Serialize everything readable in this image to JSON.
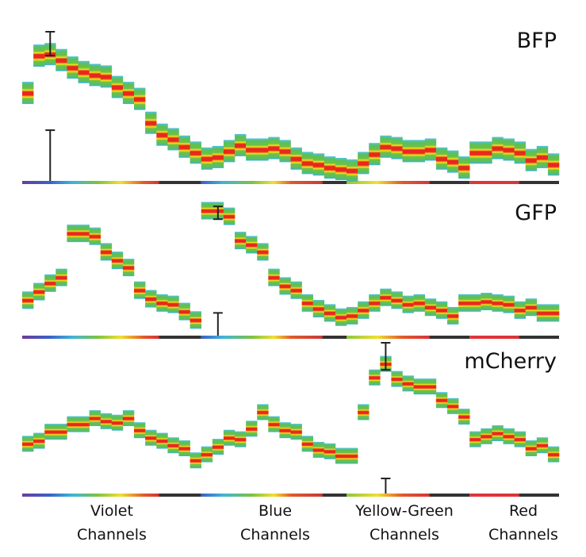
{
  "chart_data": {
    "type": "heatmap",
    "title": "",
    "xlabel": "",
    "ylabel": "",
    "ylim": [
      0,
      100
    ],
    "channel_count": 48,
    "channel_groups": [
      {
        "label_line1": "Violet",
        "label_line2": "Channels",
        "start": 0,
        "end": 16
      },
      {
        "label_line1": "Blue",
        "label_line2": "Channels",
        "start": 16,
        "end": 29
      },
      {
        "label_line1": "Yellow-Green",
        "label_line2": "Channels",
        "start": 29,
        "end": 40
      },
      {
        "label_line1": "Red",
        "label_line2": "Channels",
        "start": 40,
        "end": 48
      }
    ],
    "series": [
      {
        "name": "BFP",
        "values": [
          59,
          84,
          85,
          81,
          76,
          73,
          71,
          70,
          63,
          59,
          55,
          39,
          31,
          28,
          23,
          19,
          15,
          16,
          20,
          24,
          21,
          21,
          22,
          20,
          15,
          12,
          11,
          9,
          8,
          7,
          12,
          18,
          23,
          22,
          20,
          20,
          21,
          15,
          13,
          9,
          19,
          19,
          22,
          21,
          19,
          14,
          16,
          11
        ],
        "error_bars": [
          {
            "channel": 2,
            "low": 84,
            "high": 100
          },
          {
            "channel": 2,
            "low": 0,
            "high": 34
          }
        ]
      },
      {
        "name": "GFP",
        "values": [
          25,
          31,
          37,
          41,
          72,
          72,
          70,
          59,
          53,
          48,
          32,
          26,
          23,
          22,
          17,
          11,
          88,
          88,
          84,
          67,
          64,
          59,
          41,
          35,
          32,
          23,
          19,
          16,
          13,
          14,
          18,
          23,
          27,
          25,
          22,
          23,
          20,
          18,
          14,
          23,
          23,
          24,
          23,
          22,
          18,
          20,
          16,
          16
        ],
        "error_bars": [
          {
            "channel": 17,
            "low": 82,
            "high": 91
          },
          {
            "channel": 17,
            "low": 0,
            "high": 16
          }
        ]
      },
      {
        "name": "mCherry",
        "values": [
          33,
          35,
          41,
          41,
          46,
          46,
          50,
          48,
          47,
          50,
          42,
          37,
          35,
          32,
          30,
          22,
          26,
          31,
          37,
          36,
          43,
          54,
          46,
          42,
          41,
          33,
          29,
          28,
          25,
          25,
          54,
          77,
          86,
          76,
          73,
          71,
          71,
          62,
          58,
          51,
          36,
          38,
          40,
          38,
          36,
          30,
          32,
          26
        ],
        "error_bars": [
          {
            "channel": 32,
            "low": 82,
            "high": 100
          },
          {
            "channel": 32,
            "low": 0,
            "high": 10
          }
        ]
      }
    ]
  }
}
